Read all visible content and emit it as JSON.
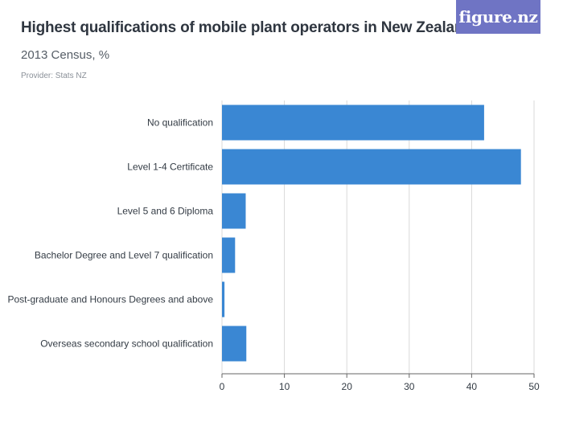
{
  "header": {
    "title": "Highest qualifications of mobile plant operators in New Zealand",
    "subtitle": "2013 Census, %",
    "provider": "Provider: Stats NZ"
  },
  "logo": {
    "text": "figure.nz",
    "background_color": "#6f74c4"
  },
  "colors": {
    "bar": "#3a87d3",
    "gridline": "#d9d9d9",
    "axis": "#666666"
  },
  "chart_data": {
    "type": "bar",
    "orientation": "horizontal",
    "categories": [
      "No qualification",
      "Level 1-4 Certificate",
      "Level 5 and 6 Diploma",
      "Bachelor Degree and Level 7 qualification",
      "Post-graduate and Honours Degrees and above",
      "Overseas secondary school qualification"
    ],
    "values": [
      42.0,
      47.9,
      3.8,
      2.1,
      0.4,
      3.9
    ],
    "xlim": [
      0,
      50
    ],
    "xticks": [
      0,
      10,
      20,
      30,
      40,
      50
    ],
    "grid": true
  }
}
